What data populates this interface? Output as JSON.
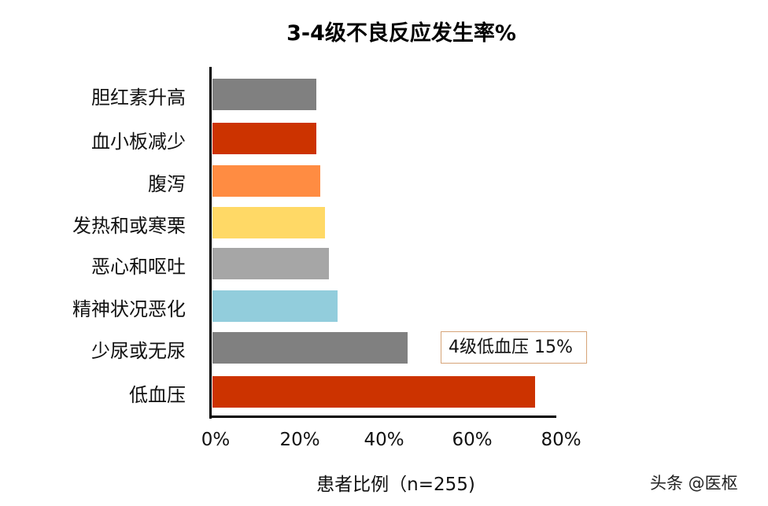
{
  "chart_data": {
    "type": "bar",
    "orientation": "horizontal",
    "title": "3-4级不良反应发生率%",
    "xlabel": "患者比例（n=255)",
    "ylabel": "",
    "xlim": [
      0,
      80
    ],
    "x_ticks": [
      "0%",
      "20%",
      "40%",
      "60%",
      "80%"
    ],
    "grid": false,
    "legend": null,
    "categories": [
      "胆红素升高",
      "血小板减少",
      "腹泻",
      "发热和或寒栗",
      "恶心和呕吐",
      "精神状况恶化",
      "少尿或无尿",
      "低血压"
    ],
    "values": [
      24,
      24,
      25,
      26,
      27,
      29,
      45,
      74
    ],
    "colors": [
      "#808080",
      "#cc3300",
      "#ff8c42",
      "#ffd966",
      "#a6a6a6",
      "#92cddc",
      "#808080",
      "#cc3300"
    ],
    "annotations": [
      {
        "text": "4级低血压 15%",
        "target": "低血压"
      }
    ]
  },
  "title": "3-4级不良反应发生率%",
  "xlabel": "患者比例（n=255)",
  "ticks": [
    "0%",
    "20%",
    "40%",
    "60%",
    "80%"
  ],
  "categories": [
    "胆红素升高",
    "血小板减少",
    "腹泻",
    "发热和或寒栗",
    "恶心和呕吐",
    "精神状况恶化",
    "少尿或无尿",
    "低血压"
  ],
  "annotation": "4级低血压 15%",
  "watermark": "头条 @医枢"
}
